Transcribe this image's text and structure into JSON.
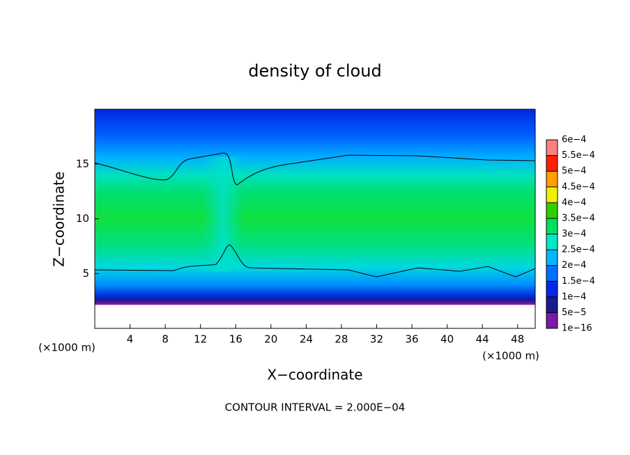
{
  "chart_data": {
    "type": "contour",
    "title": "density of cloud",
    "x_label": "X−coordinate",
    "y_label": "Z−coordinate",
    "x_unit_labels": [
      "(×1000 m)",
      "(×1000 m)"
    ],
    "footnote": "CONTOUR INTERVAL = 2.000E−04",
    "xlim": [
      0,
      50
    ],
    "xticks": [
      4,
      8,
      12,
      16,
      20,
      24,
      28,
      32,
      36,
      40,
      44,
      48
    ],
    "ylim": [
      0,
      20
    ],
    "yticks": [
      5,
      10,
      15
    ],
    "colorbar": {
      "ticks": [
        {
          "value": 1e-16,
          "label": "1e−16"
        },
        {
          "value": 5e-05,
          "label": "5e−5"
        },
        {
          "value": 0.0001,
          "label": "1e−4"
        },
        {
          "value": 0.00015,
          "label": "1.5e−4"
        },
        {
          "value": 0.0002,
          "label": "2e−4"
        },
        {
          "value": 0.00025,
          "label": "2.5e−4"
        },
        {
          "value": 0.0003,
          "label": "3e−4"
        },
        {
          "value": 0.00035,
          "label": "3.5e−4"
        },
        {
          "value": 0.0004,
          "label": "4e−4"
        },
        {
          "value": 0.00045,
          "label": "4.5e−4"
        },
        {
          "value": 0.0005,
          "label": "5e−4"
        },
        {
          "value": 0.00055,
          "label": "5.5e−4"
        },
        {
          "value": 0.0006,
          "label": "6e−4"
        }
      ],
      "colors": [
        "#7a1aa8",
        "#1a1a90",
        "#0028e8",
        "#0070ff",
        "#00b8ff",
        "#00e8c8",
        "#00e060",
        "#30d000",
        "#f0f000",
        "#ffa000",
        "#ff2000",
        "#ff8080"
      ]
    }
  }
}
